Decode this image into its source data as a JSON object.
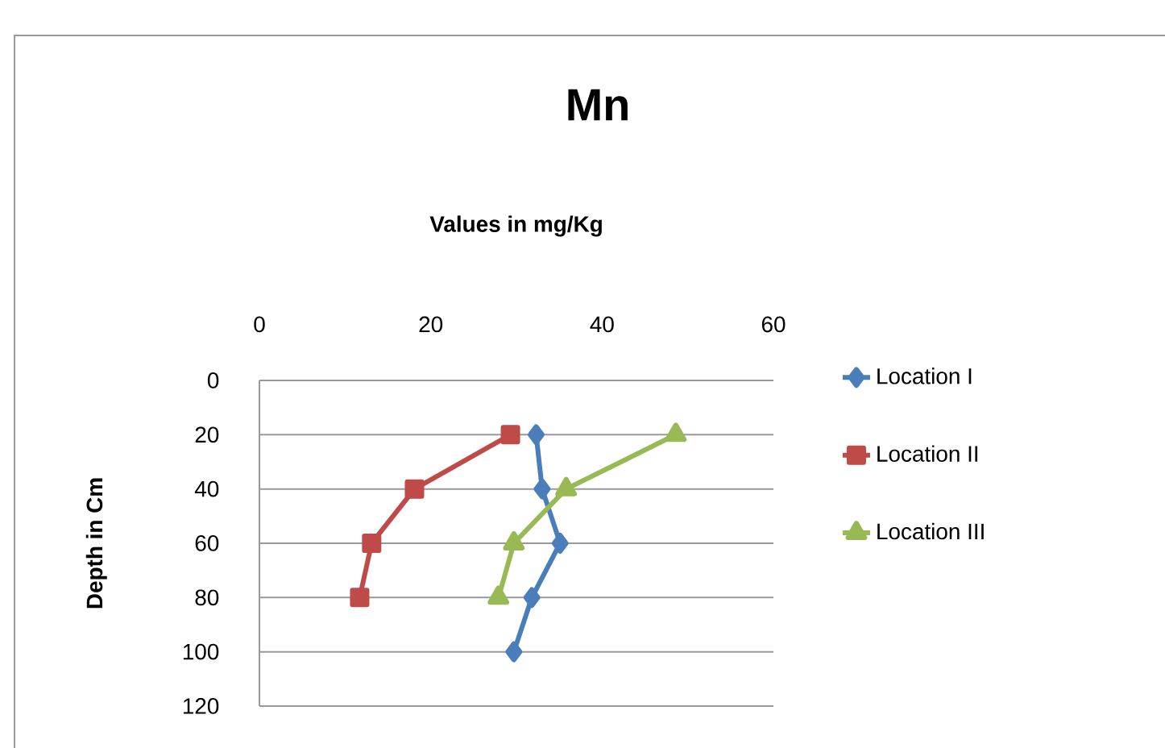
{
  "chart_data": {
    "type": "line",
    "title": "Mn",
    "xlabel": "Values in mg/Kg",
    "ylabel": "Depth in Cm",
    "xlim": [
      0,
      60
    ],
    "xticks": [
      0,
      20,
      40,
      60
    ],
    "ylim": [
      120,
      0
    ],
    "yticks": [
      0,
      20,
      40,
      60,
      80,
      100,
      120
    ],
    "grid": "y",
    "legend": "right",
    "series": [
      {
        "name": "Location I",
        "color": "#4a7ebb",
        "marker": "diamond",
        "x": [
          32.3,
          33.0,
          35.1,
          31.8,
          29.7
        ],
        "values": [
          20,
          40,
          60,
          80,
          100
        ]
      },
      {
        "name": "Location II",
        "color": "#be4b48",
        "marker": "square",
        "x": [
          29.3,
          18.1,
          13.1,
          11.7
        ],
        "values": [
          20,
          40,
          60,
          80
        ]
      },
      {
        "name": "Location III",
        "color": "#98b954",
        "marker": "triangle",
        "x": [
          48.6,
          35.8,
          29.7,
          27.9
        ],
        "values": [
          20,
          40,
          60,
          80
        ]
      }
    ]
  }
}
